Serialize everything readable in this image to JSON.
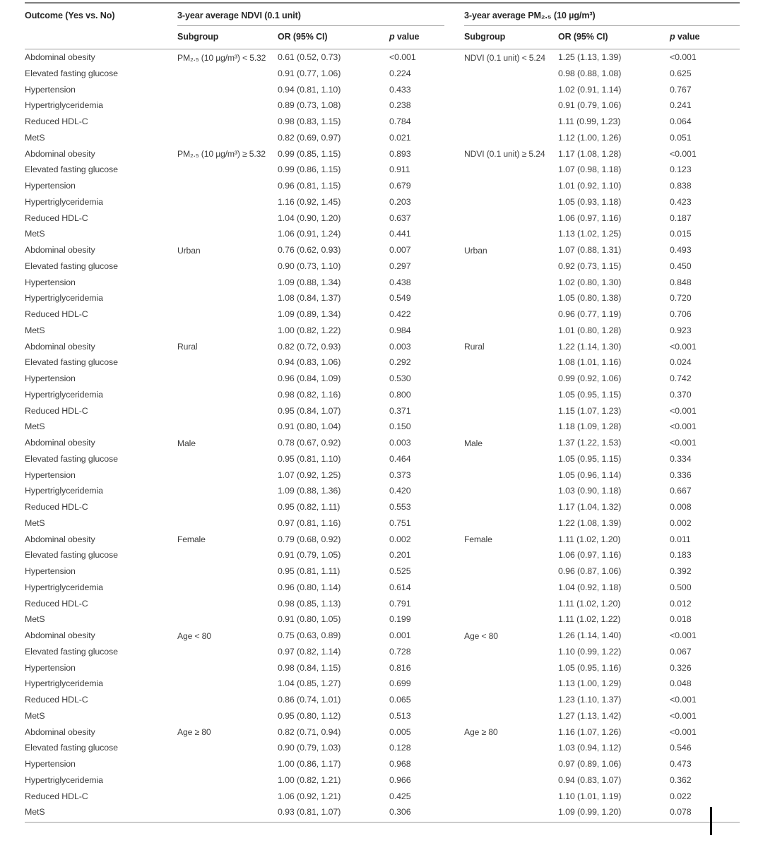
{
  "table": {
    "header": {
      "outcome": "Outcome (Yes vs. No)",
      "group1": "3-year average NDVI (0.1 unit)",
      "group2": "3-year average PM₂.₅ (10 µg/m³)",
      "subgroup": "Subgroup",
      "or_ci": "OR (95% CI)",
      "p_italic": "p",
      "p_rest": "value"
    },
    "blocks": [
      {
        "ndvi_subgroup": "PM₂.₅ (10 µg/m³) < 5.32",
        "pm_subgroup": "NDVI (0.1 unit) < 5.24",
        "rows": [
          {
            "outcome": "Abdominal obesity",
            "ndvi_or": "0.61 (0.52, 0.73)",
            "ndvi_p": "<0.001",
            "pm_or": "1.25 (1.13, 1.39)",
            "pm_p": "<0.001"
          },
          {
            "outcome": "Elevated fasting glucose",
            "ndvi_or": "0.91 (0.77, 1.06)",
            "ndvi_p": "0.224",
            "pm_or": "0.98 (0.88, 1.08)",
            "pm_p": "0.625"
          },
          {
            "outcome": "Hypertension",
            "ndvi_or": "0.94 (0.81, 1.10)",
            "ndvi_p": "0.433",
            "pm_or": "1.02 (0.91, 1.14)",
            "pm_p": "0.767"
          },
          {
            "outcome": "Hypertriglyceridemia",
            "ndvi_or": "0.89 (0.73, 1.08)",
            "ndvi_p": "0.238",
            "pm_or": "0.91 (0.79, 1.06)",
            "pm_p": "0.241"
          },
          {
            "outcome": "Reduced HDL-C",
            "ndvi_or": "0.98 (0.83, 1.15)",
            "ndvi_p": "0.784",
            "pm_or": "1.11 (0.99, 1.23)",
            "pm_p": "0.064"
          },
          {
            "outcome": "MetS",
            "ndvi_or": "0.82 (0.69, 0.97)",
            "ndvi_p": "0.021",
            "pm_or": "1.12 (1.00, 1.26)",
            "pm_p": "0.051"
          }
        ]
      },
      {
        "ndvi_subgroup": "PM₂.₅ (10 µg/m³) ≥ 5.32",
        "pm_subgroup": "NDVI (0.1 unit) ≥ 5.24",
        "rows": [
          {
            "outcome": "Abdominal obesity",
            "ndvi_or": "0.99 (0.85, 1.15)",
            "ndvi_p": "0.893",
            "pm_or": "1.17 (1.08, 1.28)",
            "pm_p": "<0.001"
          },
          {
            "outcome": "Elevated fasting glucose",
            "ndvi_or": "0.99 (0.86, 1.15)",
            "ndvi_p": "0.911",
            "pm_or": "1.07 (0.98, 1.18)",
            "pm_p": "0.123"
          },
          {
            "outcome": "Hypertension",
            "ndvi_or": "0.96 (0.81, 1.15)",
            "ndvi_p": "0.679",
            "pm_or": "1.01 (0.92, 1.10)",
            "pm_p": "0.838"
          },
          {
            "outcome": "Hypertriglyceridemia",
            "ndvi_or": "1.16 (0.92, 1.45)",
            "ndvi_p": "0.203",
            "pm_or": "1.05 (0.93, 1.18)",
            "pm_p": "0.423"
          },
          {
            "outcome": "Reduced HDL-C",
            "ndvi_or": "1.04 (0.90, 1.20)",
            "ndvi_p": "0.637",
            "pm_or": "1.06 (0.97, 1.16)",
            "pm_p": "0.187"
          },
          {
            "outcome": "MetS",
            "ndvi_or": "1.06 (0.91, 1.24)",
            "ndvi_p": "0.441",
            "pm_or": "1.13 (1.02, 1.25)",
            "pm_p": "0.015"
          }
        ]
      },
      {
        "ndvi_subgroup": "Urban",
        "pm_subgroup": "Urban",
        "rows": [
          {
            "outcome": "Abdominal obesity",
            "ndvi_or": "0.76 (0.62, 0.93)",
            "ndvi_p": "0.007",
            "pm_or": "1.07 (0.88, 1.31)",
            "pm_p": "0.493"
          },
          {
            "outcome": "Elevated fasting glucose",
            "ndvi_or": "0.90 (0.73, 1.10)",
            "ndvi_p": "0.297",
            "pm_or": "0.92 (0.73, 1.15)",
            "pm_p": "0.450"
          },
          {
            "outcome": "Hypertension",
            "ndvi_or": "1.09 (0.88, 1.34)",
            "ndvi_p": "0.438",
            "pm_or": "1.02 (0.80, 1.30)",
            "pm_p": "0.848"
          },
          {
            "outcome": "Hypertriglyceridemia",
            "ndvi_or": "1.08 (0.84, 1.37)",
            "ndvi_p": "0.549",
            "pm_or": "1.05 (0.80, 1.38)",
            "pm_p": "0.720"
          },
          {
            "outcome": "Reduced HDL-C",
            "ndvi_or": "1.09 (0.89, 1.34)",
            "ndvi_p": "0.422",
            "pm_or": "0.96 (0.77, 1.19)",
            "pm_p": "0.706"
          },
          {
            "outcome": "MetS",
            "ndvi_or": "1.00 (0.82, 1.22)",
            "ndvi_p": "0.984",
            "pm_or": "1.01 (0.80, 1.28)",
            "pm_p": "0.923"
          }
        ]
      },
      {
        "ndvi_subgroup": "Rural",
        "pm_subgroup": "Rural",
        "rows": [
          {
            "outcome": "Abdominal obesity",
            "ndvi_or": "0.82 (0.72, 0.93)",
            "ndvi_p": "0.003",
            "pm_or": "1.22 (1.14, 1.30)",
            "pm_p": "<0.001"
          },
          {
            "outcome": "Elevated fasting glucose",
            "ndvi_or": "0.94 (0.83, 1.06)",
            "ndvi_p": "0.292",
            "pm_or": "1.08 (1.01, 1.16)",
            "pm_p": "0.024"
          },
          {
            "outcome": "Hypertension",
            "ndvi_or": "0.96 (0.84, 1.09)",
            "ndvi_p": "0.530",
            "pm_or": "0.99 (0.92, 1.06)",
            "pm_p": "0.742"
          },
          {
            "outcome": "Hypertriglyceridemia",
            "ndvi_or": "0.98 (0.82, 1.16)",
            "ndvi_p": "0.800",
            "pm_or": "1.05 (0.95, 1.15)",
            "pm_p": "0.370"
          },
          {
            "outcome": "Reduced HDL-C",
            "ndvi_or": "0.95 (0.84, 1.07)",
            "ndvi_p": "0.371",
            "pm_or": "1.15 (1.07, 1.23)",
            "pm_p": "<0.001"
          },
          {
            "outcome": "MetS",
            "ndvi_or": "0.91 (0.80, 1.04)",
            "ndvi_p": "0.150",
            "pm_or": "1.18 (1.09, 1.28)",
            "pm_p": "<0.001"
          }
        ]
      },
      {
        "ndvi_subgroup": "Male",
        "pm_subgroup": "Male",
        "rows": [
          {
            "outcome": "Abdominal obesity",
            "ndvi_or": "0.78 (0.67, 0.92)",
            "ndvi_p": "0.003",
            "pm_or": "1.37 (1.22, 1.53)",
            "pm_p": "<0.001"
          },
          {
            "outcome": "Elevated fasting glucose",
            "ndvi_or": "0.95 (0.81, 1.10)",
            "ndvi_p": "0.464",
            "pm_or": "1.05 (0.95, 1.15)",
            "pm_p": "0.334"
          },
          {
            "outcome": "Hypertension",
            "ndvi_or": "1.07 (0.92, 1.25)",
            "ndvi_p": "0.373",
            "pm_or": "1.05 (0.96, 1.14)",
            "pm_p": "0.336"
          },
          {
            "outcome": "Hypertriglyceridemia",
            "ndvi_or": "1.09 (0.88, 1.36)",
            "ndvi_p": "0.420",
            "pm_or": "1.03 (0.90, 1.18)",
            "pm_p": "0.667"
          },
          {
            "outcome": "Reduced HDL-C",
            "ndvi_or": "0.95 (0.82, 1.11)",
            "ndvi_p": "0.553",
            "pm_or": "1.17 (1.04, 1.32)",
            "pm_p": "0.008"
          },
          {
            "outcome": "MetS",
            "ndvi_or": "0.97 (0.81, 1.16)",
            "ndvi_p": "0.751",
            "pm_or": "1.22 (1.08, 1.39)",
            "pm_p": "0.002"
          }
        ]
      },
      {
        "ndvi_subgroup": "Female",
        "pm_subgroup": "Female",
        "rows": [
          {
            "outcome": "Abdominal obesity",
            "ndvi_or": "0.79 (0.68, 0.92)",
            "ndvi_p": "0.002",
            "pm_or": "1.11 (1.02, 1.20)",
            "pm_p": "0.011"
          },
          {
            "outcome": "Elevated fasting glucose",
            "ndvi_or": "0.91 (0.79, 1.05)",
            "ndvi_p": "0.201",
            "pm_or": "1.06 (0.97, 1.16)",
            "pm_p": "0.183"
          },
          {
            "outcome": "Hypertension",
            "ndvi_or": "0.95 (0.81, 1.11)",
            "ndvi_p": "0.525",
            "pm_or": "0.96 (0.87, 1.06)",
            "pm_p": "0.392"
          },
          {
            "outcome": "Hypertriglyceridemia",
            "ndvi_or": "0.96 (0.80, 1.14)",
            "ndvi_p": "0.614",
            "pm_or": "1.04 (0.92, 1.18)",
            "pm_p": "0.500"
          },
          {
            "outcome": "Reduced HDL-C",
            "ndvi_or": "0.98 (0.85, 1.13)",
            "ndvi_p": "0.791",
            "pm_or": "1.11 (1.02, 1.20)",
            "pm_p": "0.012"
          },
          {
            "outcome": "MetS",
            "ndvi_or": "0.91 (0.80, 1.05)",
            "ndvi_p": "0.199",
            "pm_or": "1.11 (1.02, 1.22)",
            "pm_p": "0.018"
          }
        ]
      },
      {
        "ndvi_subgroup": "Age < 80",
        "pm_subgroup": "Age < 80",
        "rows": [
          {
            "outcome": "Abdominal obesity",
            "ndvi_or": "0.75 (0.63, 0.89)",
            "ndvi_p": "0.001",
            "pm_or": "1.26 (1.14, 1.40)",
            "pm_p": "<0.001"
          },
          {
            "outcome": "Elevated fasting glucose",
            "ndvi_or": "0.97 (0.82, 1.14)",
            "ndvi_p": "0.728",
            "pm_or": "1.10 (0.99, 1.22)",
            "pm_p": "0.067"
          },
          {
            "outcome": "Hypertension",
            "ndvi_or": "0.98 (0.84, 1.15)",
            "ndvi_p": "0.816",
            "pm_or": "1.05 (0.95, 1.16)",
            "pm_p": "0.326"
          },
          {
            "outcome": "Hypertriglyceridemia",
            "ndvi_or": "1.04 (0.85, 1.27)",
            "ndvi_p": "0.699",
            "pm_or": "1.13 (1.00, 1.29)",
            "pm_p": "0.048"
          },
          {
            "outcome": "Reduced HDL-C",
            "ndvi_or": "0.86 (0.74, 1.01)",
            "ndvi_p": "0.065",
            "pm_or": "1.23 (1.10, 1.37)",
            "pm_p": "<0.001"
          },
          {
            "outcome": "MetS",
            "ndvi_or": "0.95 (0.80, 1.12)",
            "ndvi_p": "0.513",
            "pm_or": "1.27 (1.13, 1.42)",
            "pm_p": "<0.001"
          }
        ]
      },
      {
        "ndvi_subgroup": "Age ≥ 80",
        "pm_subgroup": "Age ≥ 80",
        "rows": [
          {
            "outcome": "Abdominal obesity",
            "ndvi_or": "0.82 (0.71, 0.94)",
            "ndvi_p": "0.005",
            "pm_or": "1.16 (1.07, 1.26)",
            "pm_p": "<0.001"
          },
          {
            "outcome": "Elevated fasting glucose",
            "ndvi_or": "0.90 (0.79, 1.03)",
            "ndvi_p": "0.128",
            "pm_or": "1.03 (0.94, 1.12)",
            "pm_p": "0.546"
          },
          {
            "outcome": "Hypertension",
            "ndvi_or": "1.00 (0.86, 1.17)",
            "ndvi_p": "0.968",
            "pm_or": "0.97 (0.89, 1.06)",
            "pm_p": "0.473"
          },
          {
            "outcome": "Hypertriglyceridemia",
            "ndvi_or": "1.00 (0.82, 1.21)",
            "ndvi_p": "0.966",
            "pm_or": "0.94 (0.83, 1.07)",
            "pm_p": "0.362"
          },
          {
            "outcome": "Reduced HDL-C",
            "ndvi_or": "1.06 (0.92, 1.21)",
            "ndvi_p": "0.425",
            "pm_or": "1.10 (1.01, 1.19)",
            "pm_p": "0.022"
          },
          {
            "outcome": "MetS",
            "ndvi_or": "0.93 (0.81, 1.07)",
            "ndvi_p": "0.306",
            "pm_or": "1.09 (0.99, 1.20)",
            "pm_p": "0.078"
          }
        ]
      }
    ]
  }
}
